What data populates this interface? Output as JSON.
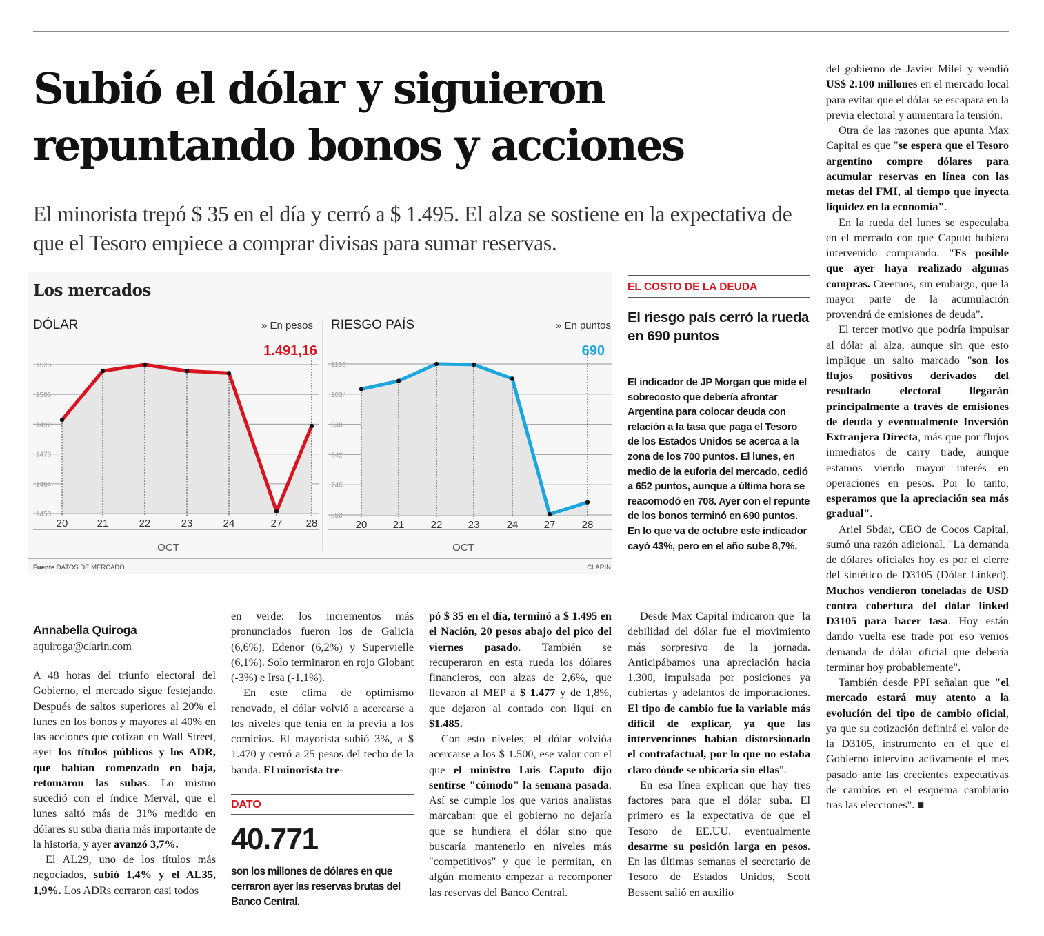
{
  "headline": "Subió el dólar y siguieron repuntando bonos y acciones",
  "dek": "El minorista trepó $ 35 en el día y cerró a $ 1.495. El alza se sostiene en la expectativa de que el Tesoro empiece a comprar divisas para sumar reservas.",
  "markets": {
    "title": "Los mercados",
    "source_label": "Fuente",
    "source": "DATOS DE MERCADO",
    "credit": "CLARIN"
  },
  "chart_data": [
    {
      "type": "line",
      "title": "DÓLAR",
      "unit_label": "» En pesos",
      "last_value_label": "1.491,16",
      "color": "#d7141f",
      "categories": [
        "20",
        "21",
        "22",
        "23",
        "24",
        "27",
        "28"
      ],
      "values": [
        1494,
        1517,
        1520,
        1517,
        1516,
        1451,
        1491.16
      ],
      "xlabel": "OCT",
      "ylim": [
        1450,
        1520
      ],
      "yticks": [
        "1450",
        "1464",
        "1478",
        "1492",
        "1506",
        "1520"
      ],
      "grid": true
    },
    {
      "type": "line",
      "title": "RIESGO PAÍS",
      "unit_label": "» En puntos",
      "last_value_label": "690",
      "color": "#1ba6e0",
      "categories": [
        "20",
        "21",
        "22",
        "23",
        "24",
        "27",
        "28"
      ],
      "values": [
        1050,
        1076,
        1130,
        1128,
        1083,
        652,
        690
      ],
      "xlabel": "OCT",
      "ylim": [
        650,
        1130
      ],
      "yticks": [
        "650",
        "746",
        "842",
        "938",
        "1034",
        "1130"
      ],
      "grid": true
    }
  ],
  "sidebar": {
    "kicker": "EL COSTO DE LA DEUDA",
    "headline": "El riesgo país cerró la rueda en 690 puntos",
    "body": "El indicador de JP Morgan que mide el sobrecosto que debería afrontar Argentina para colocar deuda con relación a la tasa que paga el Tesoro de los Estados Unidos se acerca a la zona de los 700 puntos. El lunes, en medio de la euforia del mercado, cedió a 652 puntos, aunque a última hora se reacomodó en 708. Ayer con el repunte de los bonos terminó en 690 puntos. En lo que va de octubre este indicador cayó 43%, pero en el año sube 8,7%."
  },
  "byline": {
    "author": "Annabella Quiroga",
    "email": "aquiroga@clarin.com"
  },
  "dato": {
    "kicker": "DATO",
    "number": "40.771",
    "text": "son los millones de dólares en que cerraron ayer las reservas brutas del Banco Central."
  },
  "columns": [
    {
      "paragraphs": [
        {
          "noindent": true,
          "runs": [
            {
              "t": "A 48 horas del triunfo electoral del Gobierno, el mercado sigue festejando. Después de saltos superiores al 20% el lunes en los bonos y mayores al 40% en las acciones que cotizan en Wall Street, ayer "
            },
            {
              "t": "los títulos públicos y los ADR, que habían comenzado en baja, retomaron las subas",
              "b": true
            },
            {
              "t": ". Lo mismo sucedió con el índice Merval, que el lunes saltó más de 31% medido en dólares su suba diaria más importante de la historia, y ayer "
            },
            {
              "t": "avanzó 3,7%.",
              "b": true
            }
          ]
        },
        {
          "runs": [
            {
              "t": "El AL29, uno de los títulos más negociados, "
            },
            {
              "t": "subió 1,4% y el AL35, 1,9%.",
              "b": true
            },
            {
              "t": " Los ADRs cerraron casi todos"
            }
          ]
        }
      ]
    },
    {
      "paragraphs": [
        {
          "noindent": true,
          "runs": [
            {
              "t": "en verde: los incrementos más pronunciados fueron los de Galicia (6,6%), Edenor (6,2%) y Supervielle (6,1%). Solo terminaron en rojo Globant (-3%) e Irsa (-1,1%)."
            }
          ]
        },
        {
          "runs": [
            {
              "t": "En este clima de optimismo renovado, el dólar volvió a acercarse a los niveles que tenía en la previa a los comicios. El mayorista subió 3%, a $ 1.470 y cerró a 25 pesos del techo de la banda. "
            },
            {
              "t": "El minorista tre-",
              "b": true
            }
          ]
        }
      ]
    },
    {
      "paragraphs": [
        {
          "noindent": true,
          "runs": [
            {
              "t": "pó $ 35 en el día, terminó a $ 1.495 en el Nación, 20 pesos abajo del pico del viernes pasado",
              "b": true
            },
            {
              "t": ". También se recuperaron en esta rueda los dólares financieros, con alzas de 2,6%, que llevaron al MEP a "
            },
            {
              "t": "$ 1.477",
              "b": true
            },
            {
              "t": " y de 1,8%, que dejaron al contado con liqui en "
            },
            {
              "t": "$1.485.",
              "b": true
            }
          ]
        },
        {
          "runs": [
            {
              "t": "Con esto niveles, el dólar volvióa acercarse a los $ 1.500, ese valor con el que "
            },
            {
              "t": "el ministro Luis Caputo dijo sentirse \"cómodo\" la semana pasada",
              "b": true
            },
            {
              "t": ". Así se cumple los que varios analistas marcaban: que el gobierno no dejaría que se hundiera el dólar sino que buscaría mantenerlo en niveles más \"competitivos\" y que le permitan, en algún momento empezar a recomponer las reservas del Banco Central."
            }
          ]
        }
      ]
    },
    {
      "paragraphs": [
        {
          "runs": [
            {
              "t": "Desde Max Capital indicaron que \"la debilidad del dólar fue el movimiento más sorpresivo de la jornada. Anticipábamos una apreciación hacia 1.300, impulsada por posiciones ya cubiertas y adelantos de importaciones. "
            },
            {
              "t": "El tipo de cambio fue la variable más difícil de explicar, ya que las intervenciones habían distorsionado el contrafactual, por lo que no estaba claro dónde se ubicaría sin ellas",
              "b": true
            },
            {
              "t": "\"."
            }
          ]
        },
        {
          "runs": [
            {
              "t": "En esa línea explican que hay tres factores para que el dólar suba. El primero es la expectativa de que el Tesoro de EE.UU. eventualmente "
            },
            {
              "t": "desarme su posición larga en pesos",
              "b": true
            },
            {
              "t": ". En las últimas semanas el secretario de Tesoro de Estados Unidos, Scott Bessent salió en auxilio"
            }
          ]
        }
      ]
    },
    {
      "paragraphs": [
        {
          "noindent": true,
          "runs": [
            {
              "t": "del gobierno de Javier Milei y vendió "
            },
            {
              "t": "US$ 2.100 millones",
              "b": true
            },
            {
              "t": " en el mercado local para evitar que el dólar se escapara en la previa electoral y aumentara la tensión."
            }
          ]
        },
        {
          "runs": [
            {
              "t": "Otra de las razones que apunta Max Capital es que \""
            },
            {
              "t": "se espera que el Tesoro argentino compre dólares para acumular reservas en línea con las metas del FMI, al tiempo que inyecta liquidez en la economía\"",
              "b": true
            },
            {
              "t": "."
            }
          ]
        },
        {
          "runs": [
            {
              "t": "En la rueda del lunes se especulaba en el mercado con que Caputo hubiera intervenido comprando. "
            },
            {
              "t": "\"Es posible que ayer haya realizado algunas compras.",
              "b": true
            },
            {
              "t": " Creemos, sin embargo, que la mayor parte de la acumulación provendrá de emisiones de deuda\"."
            }
          ]
        },
        {
          "runs": [
            {
              "t": "El tercer motivo que podría impulsar al dólar al alza, aunque sin que esto implique un salto marcado \""
            },
            {
              "t": "son los flujos positivos derivados del resultado electoral llegarán principalmente a través de emisiones de deuda y eventualmente Inversión Extranjera Directa",
              "b": true
            },
            {
              "t": ", más que por flujos inmediatos de carry trade, aunque estamos viendo mayor interés en operaciones en pesos. Por lo tanto, "
            },
            {
              "t": "esperamos que la apreciación sea más gradual\".",
              "b": true
            }
          ]
        },
        {
          "runs": [
            {
              "t": "Ariel Sbdar, CEO de Cocos Capital, sumó una razón adicional. \"La demanda de dólares oficiales hoy es por el cierre del sintético de D3105 (Dólar Linked). "
            },
            {
              "t": "Muchos vendieron toneladas de USD contra cobertura del dólar linked D3105 para hacer tasa",
              "b": true
            },
            {
              "t": ". Hoy están dando vuelta ese trade por eso vemos demanda de dólar oficial que debería terminar hoy probablemente\"."
            }
          ]
        },
        {
          "runs": [
            {
              "t": "También desde PPI señalan que "
            },
            {
              "t": "\"el mercado estará muy atento a la evolución del tipo de cambio oficial",
              "b": true
            },
            {
              "t": ", ya que su cotización definirá el valor de la D3105, instrumento en el que el Gobierno intervino activamente el mes pasado ante las crecientes expectativas de cambios en el esquema cambiario tras las elecciones\". "
            },
            {
              "t": "■"
            }
          ]
        }
      ]
    }
  ]
}
